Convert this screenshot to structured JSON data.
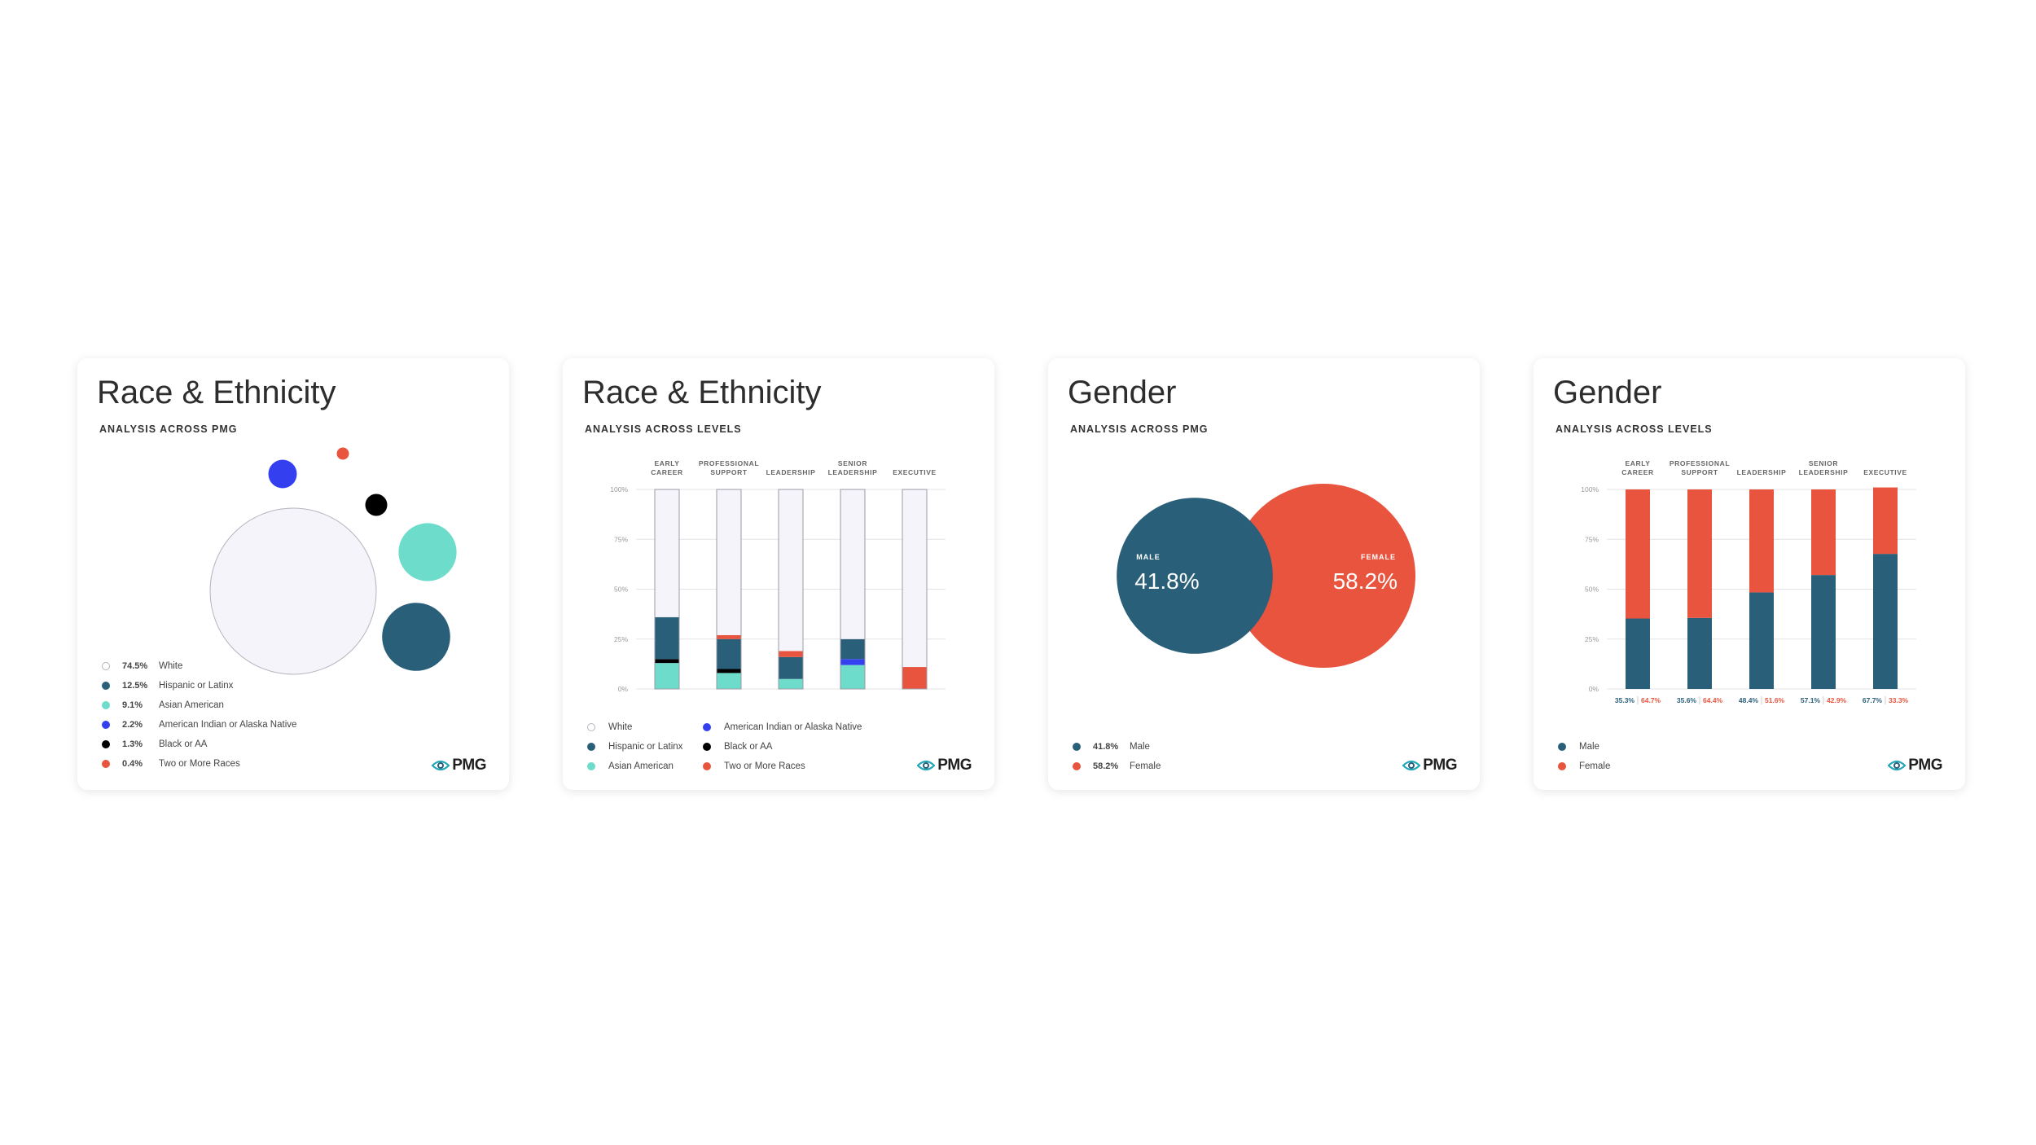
{
  "colors": {
    "white_fill": "#f5f4fb",
    "white_stroke": "#b5b5c0",
    "teal_dark": "#2a5f7a",
    "teal_light": "#6ddccb",
    "blue": "#3440f0",
    "black": "#000000",
    "red": "#e9543e"
  },
  "cards": [
    {
      "title": "Race & Ethnicity",
      "subtitle": "ANALYSIS ACROSS PMG",
      "logo": "PMG",
      "legend": [
        {
          "pct": "74.5%",
          "label": "White",
          "color": "white"
        },
        {
          "pct": "12.5%",
          "label": "Hispanic or Latinx",
          "color": "teal_dark"
        },
        {
          "pct": "9.1%",
          "label": "Asian American",
          "color": "teal_light"
        },
        {
          "pct": "2.2%",
          "label": "American Indian or Alaska Native",
          "color": "blue"
        },
        {
          "pct": "1.3%",
          "label": "Black or AA",
          "color": "black"
        },
        {
          "pct": "0.4%",
          "label": "Two or More Races",
          "color": "red"
        }
      ]
    },
    {
      "title": "Race & Ethnicity",
      "subtitle": "ANALYSIS ACROSS LEVELS",
      "logo": "PMG",
      "legend": [
        {
          "label": "White",
          "color": "white"
        },
        {
          "label": "Hispanic or Latinx",
          "color": "teal_dark"
        },
        {
          "label": "Asian American",
          "color": "teal_light"
        },
        {
          "label": "American Indian or Alaska Native",
          "color": "blue"
        },
        {
          "label": "Black or AA",
          "color": "black"
        },
        {
          "label": "Two or More Races",
          "color": "red"
        }
      ]
    },
    {
      "title": "Gender",
      "subtitle": "ANALYSIS ACROSS PMG",
      "logo": "PMG",
      "legend": [
        {
          "pct": "41.8%",
          "label": "Male",
          "color": "teal_dark"
        },
        {
          "pct": "58.2%",
          "label": "Female",
          "color": "red"
        }
      ]
    },
    {
      "title": "Gender",
      "subtitle": "ANALYSIS ACROSS LEVELS",
      "logo": "PMG",
      "legend": [
        {
          "label": "Male",
          "color": "teal_dark"
        },
        {
          "label": "Female",
          "color": "red"
        }
      ]
    }
  ],
  "chart_data": [
    {
      "type": "bubble",
      "series": [
        {
          "name": "White",
          "value": 74.5
        },
        {
          "name": "Hispanic or Latinx",
          "value": 12.5
        },
        {
          "name": "Asian American",
          "value": 9.1
        },
        {
          "name": "American Indian or Alaska Native",
          "value": 2.2
        },
        {
          "name": "Black or AA",
          "value": 1.3
        },
        {
          "name": "Two or More Races",
          "value": 0.4
        }
      ]
    },
    {
      "type": "bar",
      "stacked": true,
      "categories": [
        [
          "EARLY",
          "CAREER"
        ],
        [
          "PROFESSIONAL",
          "SUPPORT"
        ],
        [
          "LEADERSHIP"
        ],
        [
          "SENIOR",
          "LEADERSHIP"
        ],
        [
          "EXECUTIVE"
        ]
      ],
      "ylim": [
        0,
        100
      ],
      "yticks": [
        "0%",
        "25%",
        "50%",
        "75%",
        "100%"
      ],
      "series": [
        {
          "name": "Asian American",
          "color": "teal_light",
          "values": [
            13,
            8,
            5,
            12,
            0
          ]
        },
        {
          "name": "American Indian or Alaska Native",
          "color": "blue",
          "values": [
            0,
            0,
            0,
            3,
            0
          ]
        },
        {
          "name": "Black or AA",
          "color": "black",
          "values": [
            2,
            2,
            0,
            0,
            0
          ]
        },
        {
          "name": "Hispanic or Latinx",
          "color": "teal_dark",
          "values": [
            21,
            15,
            11,
            10,
            0
          ]
        },
        {
          "name": "Two or More Races",
          "color": "red",
          "values": [
            0,
            2,
            3,
            0,
            11
          ]
        },
        {
          "name": "White",
          "color": "white",
          "values": [
            64,
            73,
            81,
            75,
            89
          ]
        }
      ]
    },
    {
      "type": "venn",
      "series": [
        {
          "name": "MALE",
          "value": 41.8,
          "label": "41.8%"
        },
        {
          "name": "FEMALE",
          "value": 58.2,
          "label": "58.2%"
        }
      ]
    },
    {
      "type": "bar",
      "stacked": true,
      "categories": [
        [
          "EARLY",
          "CAREER"
        ],
        [
          "PROFESSIONAL",
          "SUPPORT"
        ],
        [
          "LEADERSHIP"
        ],
        [
          "SENIOR",
          "LEADERSHIP"
        ],
        [
          "EXECUTIVE"
        ]
      ],
      "ylim": [
        0,
        100
      ],
      "yticks": [
        "0%",
        "25%",
        "50%",
        "75%",
        "100%"
      ],
      "series": [
        {
          "name": "Male",
          "color": "teal_dark",
          "values": [
            35.3,
            35.6,
            48.4,
            57.1,
            67.7
          ],
          "labels": [
            "35.3%",
            "35.6%",
            "48.4%",
            "57.1%",
            "67.7%"
          ]
        },
        {
          "name": "Female",
          "color": "red",
          "values": [
            64.7,
            64.4,
            51.6,
            42.9,
            33.3
          ],
          "labels": [
            "64.7%",
            "64.4%",
            "51.6%",
            "42.9%",
            "33.3%"
          ]
        }
      ]
    }
  ]
}
